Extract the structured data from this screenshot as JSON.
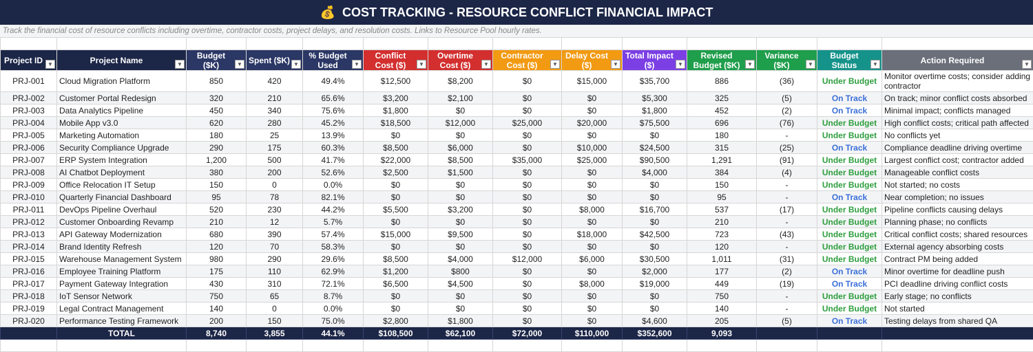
{
  "title": "COST TRACKING - RESOURCE CONFLICT FINANCIAL IMPACT",
  "title_icon": "money-bag-icon",
  "subtitle": "Track the financial cost of resource conflicts including overtime, contractor costs, project delays, and resolution costs. Links to Resource Pool hourly rates.",
  "columns": [
    {
      "label": "Project ID",
      "color": "#1c2647"
    },
    {
      "label": "Project Name",
      "color": "#1c2647"
    },
    {
      "label": "Budget ($K)",
      "color": "#2b3765"
    },
    {
      "label": "Spent ($K)",
      "color": "#2b3765"
    },
    {
      "label": "% Budget Used",
      "color": "#2b3765"
    },
    {
      "label": "Conflict Cost ($)",
      "color": "#d32f2f"
    },
    {
      "label": "Overtime Cost ($)",
      "color": "#d32f2f"
    },
    {
      "label": "Contractor Cost ($)",
      "color": "#f29a12"
    },
    {
      "label": "Delay Cost ($)",
      "color": "#f29a12"
    },
    {
      "label": "Total Impact ($)",
      "color": "#7b3fe4"
    },
    {
      "label": "Revised Budget ($K)",
      "color": "#1f9e4b"
    },
    {
      "label": "Variance ($K)",
      "color": "#1f9e4b"
    },
    {
      "label": "Budget Status",
      "color": "#15938a"
    },
    {
      "label": "Action Required",
      "color": "#6b6f7a"
    }
  ],
  "rows": [
    [
      "PRJ-001",
      "Cloud Migration Platform",
      "850",
      "420",
      "49.4%",
      "$12,500",
      "$8,200",
      "$0",
      "$15,000",
      "$35,700",
      "886",
      "(36)",
      "Under Budget",
      "Monitor overtime costs; consider adding contractor"
    ],
    [
      "PRJ-002",
      "Customer Portal Redesign",
      "320",
      "210",
      "65.6%",
      "$3,200",
      "$2,100",
      "$0",
      "$0",
      "$5,300",
      "325",
      "(5)",
      "On Track",
      "On track; minor conflict costs absorbed"
    ],
    [
      "PRJ-003",
      "Data Analytics Pipeline",
      "450",
      "340",
      "75.6%",
      "$1,800",
      "$0",
      "$0",
      "$0",
      "$1,800",
      "452",
      "(2)",
      "On Track",
      "Minimal impact; conflicts managed"
    ],
    [
      "PRJ-004",
      "Mobile App v3.0",
      "620",
      "280",
      "45.2%",
      "$18,500",
      "$12,000",
      "$25,000",
      "$20,000",
      "$75,500",
      "696",
      "(76)",
      "Under Budget",
      "High conflict costs; critical path affected"
    ],
    [
      "PRJ-005",
      "Marketing Automation",
      "180",
      "25",
      "13.9%",
      "$0",
      "$0",
      "$0",
      "$0",
      "$0",
      "180",
      "-",
      "Under Budget",
      "No conflicts yet"
    ],
    [
      "PRJ-006",
      "Security Compliance Upgrade",
      "290",
      "175",
      "60.3%",
      "$8,500",
      "$6,000",
      "$0",
      "$10,000",
      "$24,500",
      "315",
      "(25)",
      "On Track",
      "Compliance deadline driving overtime"
    ],
    [
      "PRJ-007",
      "ERP System Integration",
      "1,200",
      "500",
      "41.7%",
      "$22,000",
      "$8,500",
      "$35,000",
      "$25,000",
      "$90,500",
      "1,291",
      "(91)",
      "Under Budget",
      "Largest conflict cost; contractor added"
    ],
    [
      "PRJ-008",
      "AI Chatbot Deployment",
      "380",
      "200",
      "52.6%",
      "$2,500",
      "$1,500",
      "$0",
      "$0",
      "$4,000",
      "384",
      "(4)",
      "Under Budget",
      "Manageable conflict costs"
    ],
    [
      "PRJ-009",
      "Office Relocation IT Setup",
      "150",
      "0",
      "0.0%",
      "$0",
      "$0",
      "$0",
      "$0",
      "$0",
      "150",
      "-",
      "Under Budget",
      "Not started; no costs"
    ],
    [
      "PRJ-010",
      "Quarterly Financial Dashboard",
      "95",
      "78",
      "82.1%",
      "$0",
      "$0",
      "$0",
      "$0",
      "$0",
      "95",
      "-",
      "On Track",
      "Near completion; no issues"
    ],
    [
      "PRJ-011",
      "DevOps Pipeline Overhaul",
      "520",
      "230",
      "44.2%",
      "$5,500",
      "$3,200",
      "$0",
      "$8,000",
      "$16,700",
      "537",
      "(17)",
      "Under Budget",
      "Pipeline conflicts causing delays"
    ],
    [
      "PRJ-012",
      "Customer Onboarding Revamp",
      "210",
      "12",
      "5.7%",
      "$0",
      "$0",
      "$0",
      "$0",
      "$0",
      "210",
      "-",
      "Under Budget",
      "Planning phase; no conflicts"
    ],
    [
      "PRJ-013",
      "API Gateway Modernization",
      "680",
      "390",
      "57.4%",
      "$15,000",
      "$9,500",
      "$0",
      "$18,000",
      "$42,500",
      "723",
      "(43)",
      "Under Budget",
      "Critical conflict costs; shared resources"
    ],
    [
      "PRJ-014",
      "Brand Identity Refresh",
      "120",
      "70",
      "58.3%",
      "$0",
      "$0",
      "$0",
      "$0",
      "$0",
      "120",
      "-",
      "Under Budget",
      "External agency absorbing costs"
    ],
    [
      "PRJ-015",
      "Warehouse Management System",
      "980",
      "290",
      "29.6%",
      "$8,500",
      "$4,000",
      "$12,000",
      "$6,000",
      "$30,500",
      "1,011",
      "(31)",
      "Under Budget",
      "Contract PM being added"
    ],
    [
      "PRJ-016",
      "Employee Training Platform",
      "175",
      "110",
      "62.9%",
      "$1,200",
      "$800",
      "$0",
      "$0",
      "$2,000",
      "177",
      "(2)",
      "On Track",
      "Minor overtime for deadline push"
    ],
    [
      "PRJ-017",
      "Payment Gateway Integration",
      "430",
      "310",
      "72.1%",
      "$6,500",
      "$4,500",
      "$0",
      "$8,000",
      "$19,000",
      "449",
      "(19)",
      "On Track",
      "PCI deadline driving conflict costs"
    ],
    [
      "PRJ-018",
      "IoT Sensor Network",
      "750",
      "65",
      "8.7%",
      "$0",
      "$0",
      "$0",
      "$0",
      "$0",
      "750",
      "-",
      "Under Budget",
      "Early stage; no conflicts"
    ],
    [
      "PRJ-019",
      "Legal Contract Management",
      "140",
      "0",
      "0.0%",
      "$0",
      "$0",
      "$0",
      "$0",
      "$0",
      "140",
      "-",
      "Under Budget",
      "Not started"
    ],
    [
      "PRJ-020",
      "Performance Testing Framework",
      "200",
      "150",
      "75.0%",
      "$2,800",
      "$1,800",
      "$0",
      "$0",
      "$4,600",
      "205",
      "(5)",
      "On Track",
      "Testing delays from shared QA"
    ]
  ],
  "total": [
    "",
    "TOTAL",
    "8,740",
    "3,855",
    "44.1%",
    "$108,500",
    "$62,100",
    "$72,000",
    "$110,000",
    "$352,600",
    "9,093",
    "",
    "",
    ""
  ],
  "status_colors": {
    "Under Budget": "#2e9e3e",
    "On Track": "#3b6fd8"
  }
}
